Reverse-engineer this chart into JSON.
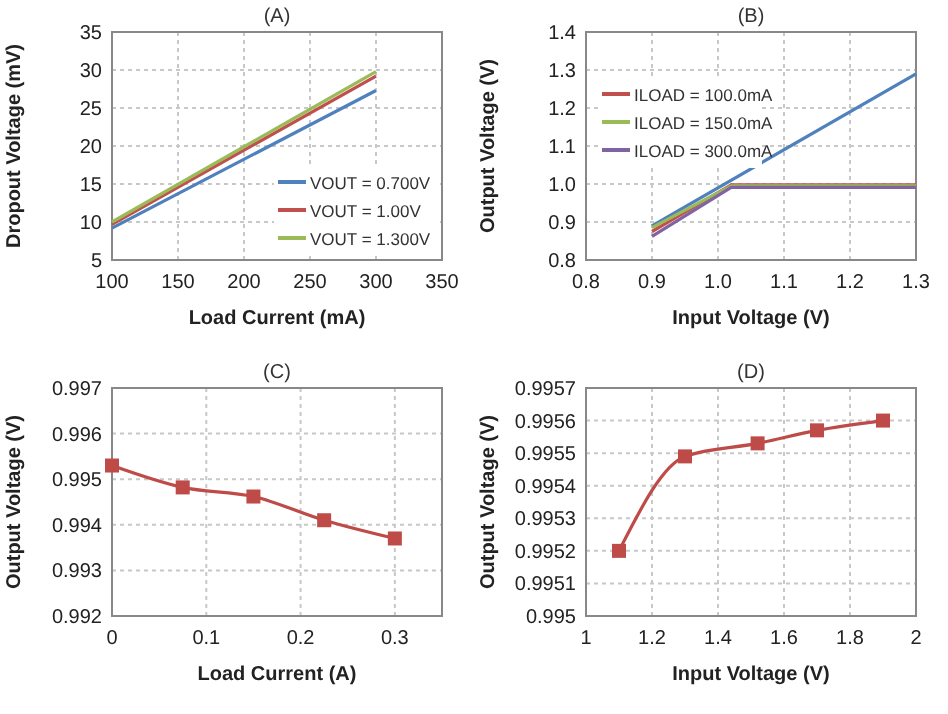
{
  "chart_data": [
    {
      "type": "line",
      "title": "(A)",
      "xlabel": "Load Current (mA)",
      "ylabel": "Dropout Voltage (mV)",
      "x": [
        100,
        300
      ],
      "xlim": [
        100,
        350
      ],
      "xticks": [
        100,
        150,
        200,
        250,
        300,
        350
      ],
      "ylim": [
        5,
        35
      ],
      "yticks": [
        5,
        10,
        15,
        20,
        25,
        30,
        35
      ],
      "grid": true,
      "legend": "bottom right",
      "marker": "none",
      "series": [
        {
          "name": "VOUT = 0.700V",
          "color": "#4f81bd",
          "values": [
            9.2,
            27.3
          ]
        },
        {
          "name": "VOUT = 1.00V",
          "color": "#c0504d",
          "values": [
            9.7,
            29.2
          ]
        },
        {
          "name": "VOUT = 1.300V",
          "color": "#9bbb59",
          "values": [
            10,
            29.8
          ]
        }
      ]
    },
    {
      "type": "line",
      "title": "(B)",
      "xlabel": "Input Voltage (V)",
      "ylabel": "Output Voltage (V)",
      "xlim": [
        0.8,
        1.3
      ],
      "xticks": [
        0.8,
        0.9,
        {
          "value": 1,
          "label": "1.0"
        },
        1.1,
        1.2,
        1.3
      ],
      "ylim": [
        0.8,
        1.4
      ],
      "yticks": [
        0.8,
        0.9,
        {
          "value": 1,
          "label": "1.0"
        },
        1.1,
        1.2,
        1.3,
        1.4
      ],
      "grid": true,
      "legend": "top left",
      "marker": "none",
      "series": [
        {
          "color": "#4f81bd",
          "x": [
            0.9,
            1.3
          ],
          "values": [
            0.89,
            1.29
          ]
        },
        {
          "name": "ILOAD = 100.0mA",
          "color": "#c0504d",
          "x": [
            0.9,
            1.02,
            1.3
          ],
          "values": [
            0.875,
            0.998,
            0.998
          ]
        },
        {
          "name": "ILOAD = 150.0mA",
          "color": "#9bbb59",
          "x": [
            0.9,
            1.02,
            1.3
          ],
          "values": [
            0.885,
            0.995,
            0.995
          ]
        },
        {
          "name": "ILOAD = 300.0mA",
          "color": "#8064a2",
          "x": [
            0.9,
            1.02,
            1.3
          ],
          "values": [
            0.862,
            0.991,
            0.991
          ]
        }
      ]
    },
    {
      "type": "line",
      "title": "(C)",
      "xlabel": "Load Current (A)",
      "ylabel": "Output Voltage (V)",
      "x": [
        0,
        0.075,
        0.15,
        0.225,
        0.3
      ],
      "xlim": [
        0,
        0.35
      ],
      "xticks": [
        0,
        0.1,
        0.2,
        0.3
      ],
      "ylim": [
        0.992,
        0.997
      ],
      "yticks": [
        0.992,
        0.993,
        0.994,
        0.995,
        0.996,
        0.997
      ],
      "grid": true,
      "marker": "square",
      "series": [
        {
          "color": "#be4b48",
          "values": [
            0.9953,
            0.99482,
            0.99462,
            0.9941,
            0.9937
          ]
        }
      ]
    },
    {
      "type": "line",
      "title": "(D)",
      "xlabel": "Input Voltage (V)",
      "ylabel": "Output Voltage (V)",
      "x": [
        1.1,
        1.3,
        1.52,
        1.7,
        1.9
      ],
      "xlim": [
        1,
        2
      ],
      "xticks": [
        1,
        1.2,
        1.4,
        1.6,
        1.8,
        2
      ],
      "ylim": [
        0.995,
        0.9957
      ],
      "yticks": [
        0.995,
        0.9951,
        0.9952,
        0.9953,
        0.9954,
        0.9955,
        0.9956,
        0.9957
      ],
      "grid": true,
      "marker": "square",
      "series": [
        {
          "color": "#be4b48",
          "values": [
            0.9952,
            0.99549,
            0.99553,
            0.99557,
            0.9956
          ]
        }
      ]
    }
  ]
}
